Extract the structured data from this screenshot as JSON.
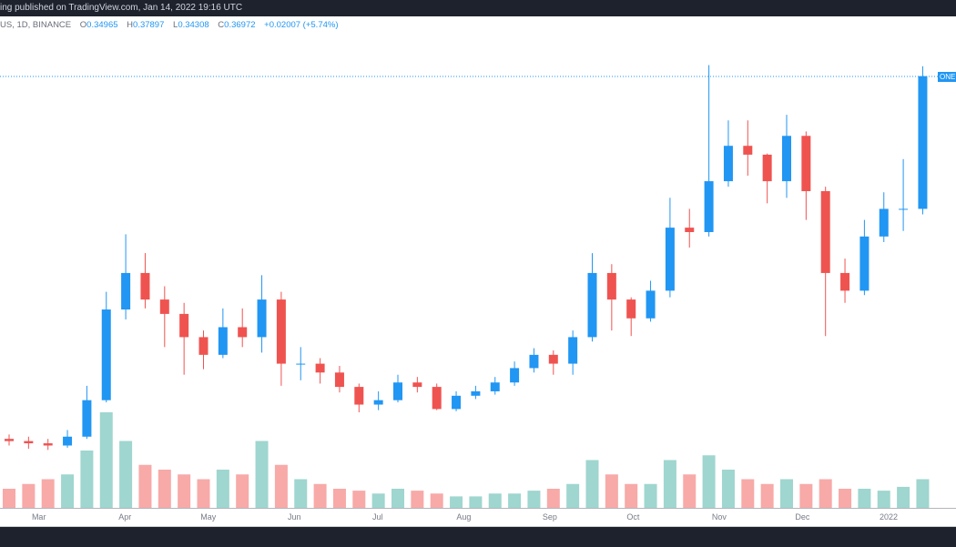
{
  "header": {
    "published": "ing published on TradingView.com, Jan 14, 2022 19:16 UTC",
    "symbol": "US, 1D, BINANCE",
    "open_label": "O",
    "open": "0.34965",
    "high_label": "H",
    "high": "0.37897",
    "low_label": "L",
    "low": "0.34308",
    "close_label": "C",
    "close": "0.36972",
    "change": "+0.02007 (+5.74%)"
  },
  "price_label": "ONE",
  "colors": {
    "up": "#2196f3",
    "down": "#ef5350",
    "vol_up": "#9fd6cf",
    "vol_down": "#f7aaa8",
    "last_price_line": "#2196f3",
    "bar": "#1e222d"
  },
  "chart_data": {
    "type": "candlestick",
    "interval_shown": "1D",
    "grid": false,
    "last_price": 0.36972,
    "x_tick_labels": [
      "Mar",
      "Apr",
      "May",
      "Jun",
      "Jul",
      "Aug",
      "Sep",
      "Oct",
      "Nov",
      "Dec",
      "2022"
    ],
    "x_tick_dates": [
      "2021-03-01",
      "2021-04-01",
      "2021-05-01",
      "2021-06-01",
      "2021-07-01",
      "2021-08-01",
      "2021-09-01",
      "2021-10-01",
      "2021-11-01",
      "2021-12-01",
      "2022-01-01"
    ],
    "week_start": [
      "2021-02-15",
      "2021-02-22",
      "2021-03-01",
      "2021-03-08",
      "2021-03-15",
      "2021-03-22",
      "2021-03-29",
      "2021-04-05",
      "2021-04-12",
      "2021-04-19",
      "2021-04-26",
      "2021-05-03",
      "2021-05-10",
      "2021-05-17",
      "2021-05-24",
      "2021-05-31",
      "2021-06-07",
      "2021-06-14",
      "2021-06-21",
      "2021-06-28",
      "2021-07-05",
      "2021-07-12",
      "2021-07-19",
      "2021-07-26",
      "2021-08-02",
      "2021-08-09",
      "2021-08-16",
      "2021-08-23",
      "2021-08-30",
      "2021-09-06",
      "2021-09-13",
      "2021-09-20",
      "2021-09-27",
      "2021-10-04",
      "2021-10-11",
      "2021-10-18",
      "2021-10-25",
      "2021-11-01",
      "2021-11-08",
      "2021-11-15",
      "2021-11-22",
      "2021-11-29",
      "2021-12-06",
      "2021-12-13",
      "2021-12-20",
      "2021-12-27",
      "2022-01-03",
      "2022-01-10"
    ],
    "open": [
      0.042,
      0.04,
      0.038,
      0.036,
      0.044,
      0.077,
      0.159,
      0.192,
      0.168,
      0.155,
      0.134,
      0.118,
      0.143,
      0.134,
      0.168,
      0.11,
      0.11,
      0.102,
      0.089,
      0.073,
      0.077,
      0.093,
      0.089,
      0.069,
      0.081,
      0.085,
      0.093,
      0.106,
      0.118,
      0.11,
      0.134,
      0.192,
      0.168,
      0.151,
      0.176,
      0.233,
      0.229,
      0.275,
      0.307,
      0.299,
      0.275,
      0.316,
      0.266,
      0.192,
      0.176,
      0.225,
      0.25,
      0.25
    ],
    "high": [
      0.046,
      0.044,
      0.042,
      0.05,
      0.09,
      0.175,
      0.227,
      0.21,
      0.18,
      0.165,
      0.14,
      0.16,
      0.16,
      0.19,
      0.175,
      0.125,
      0.115,
      0.108,
      0.092,
      0.085,
      0.1,
      0.098,
      0.092,
      0.085,
      0.09,
      0.098,
      0.112,
      0.124,
      0.122,
      0.14,
      0.21,
      0.2,
      0.17,
      0.185,
      0.26,
      0.25,
      0.38,
      0.33,
      0.33,
      0.3,
      0.335,
      0.32,
      0.27,
      0.205,
      0.24,
      0.265,
      0.295,
      0.379
    ],
    "low": [
      0.036,
      0.033,
      0.032,
      0.034,
      0.042,
      0.075,
      0.15,
      0.16,
      0.125,
      0.1,
      0.105,
      0.115,
      0.125,
      0.12,
      0.09,
      0.095,
      0.092,
      0.084,
      0.066,
      0.068,
      0.075,
      0.084,
      0.068,
      0.067,
      0.078,
      0.082,
      0.09,
      0.102,
      0.1,
      0.1,
      0.13,
      0.14,
      0.135,
      0.148,
      0.17,
      0.215,
      0.225,
      0.27,
      0.28,
      0.255,
      0.26,
      0.24,
      0.135,
      0.165,
      0.172,
      0.22,
      0.23,
      0.245
    ],
    "close": [
      0.04,
      0.038,
      0.036,
      0.044,
      0.077,
      0.159,
      0.192,
      0.168,
      0.155,
      0.134,
      0.118,
      0.143,
      0.134,
      0.168,
      0.11,
      0.11,
      0.102,
      0.089,
      0.073,
      0.077,
      0.093,
      0.089,
      0.069,
      0.081,
      0.085,
      0.093,
      0.106,
      0.118,
      0.11,
      0.134,
      0.192,
      0.168,
      0.151,
      0.176,
      0.233,
      0.229,
      0.275,
      0.307,
      0.299,
      0.275,
      0.316,
      0.266,
      0.192,
      0.176,
      0.225,
      0.25,
      0.25,
      0.37
    ],
    "volume_relative": [
      20,
      25,
      30,
      35,
      60,
      100,
      70,
      45,
      40,
      35,
      30,
      40,
      35,
      70,
      45,
      30,
      25,
      20,
      18,
      15,
      20,
      18,
      15,
      12,
      12,
      15,
      15,
      18,
      20,
      25,
      50,
      35,
      25,
      25,
      50,
      35,
      55,
      40,
      30,
      25,
      30,
      25,
      30,
      20,
      20,
      18,
      22,
      30
    ]
  }
}
